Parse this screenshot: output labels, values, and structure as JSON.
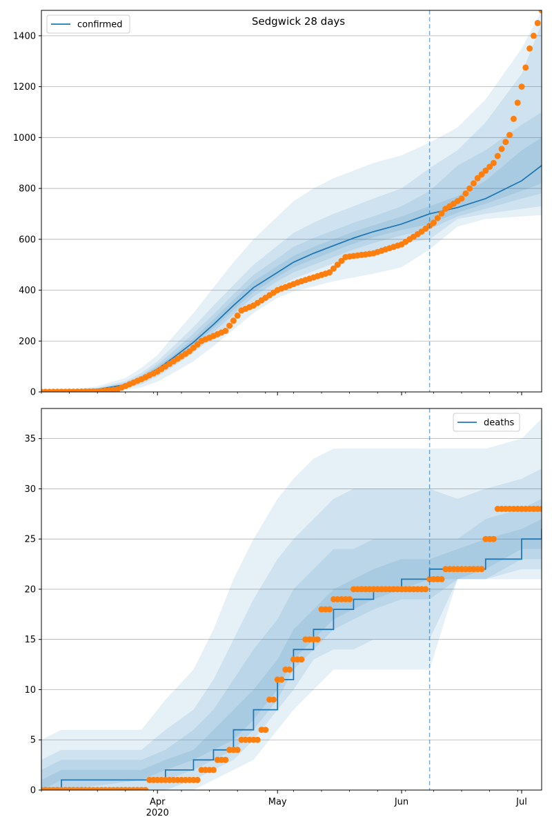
{
  "chart_data": [
    {
      "type": "line",
      "title": "Sedgwick 28 days",
      "legend": {
        "entries": [
          "confirmed"
        ],
        "placement": "top-left"
      },
      "xlim": [
        "2020-03-03",
        "2020-07-06"
      ],
      "ylim": [
        0,
        1500
      ],
      "yticks": [
        0,
        200,
        400,
        600,
        800,
        1000,
        1200,
        1400
      ],
      "grid": "horizontal",
      "forecast_start": "2020-06-08",
      "colors": {
        "line": "#1f77b4",
        "points": "#ff7f0e",
        "band": "#1f77b4",
        "divider": "#1f77b4"
      },
      "model": {
        "x": [
          "2020-03-03",
          "2020-03-10",
          "2020-03-17",
          "2020-03-24",
          "2020-03-28",
          "2020-04-01",
          "2020-04-05",
          "2020-04-10",
          "2020-04-15",
          "2020-04-20",
          "2020-04-25",
          "2020-05-01",
          "2020-05-05",
          "2020-05-10",
          "2020-05-15",
          "2020-05-20",
          "2020-05-25",
          "2020-06-01",
          "2020-06-08",
          "2020-06-15",
          "2020-06-22",
          "2020-07-01",
          "2020-07-06"
        ],
        "median": [
          2,
          5,
          10,
          28,
          55,
          90,
          135,
          195,
          265,
          340,
          410,
          470,
          510,
          545,
          575,
          605,
          630,
          660,
          700,
          725,
          760,
          830,
          890
        ],
        "bands": [
          {
            "lo": [
              0,
              0,
              2,
              8,
              18,
              40,
              75,
              120,
              180,
              245,
              310,
              370,
              395,
              415,
              435,
              450,
              465,
              490,
              560,
              650,
              680,
              690,
              695
            ],
            "hi": [
              6,
              10,
              22,
              55,
              95,
              145,
              220,
              310,
              410,
              510,
              600,
              690,
              750,
              800,
              840,
              870,
              900,
              930,
              980,
              1040,
              1150,
              1350,
              1500
            ]
          },
          {
            "lo": [
              1,
              2,
              4,
              14,
              30,
              60,
              100,
              155,
              215,
              285,
              355,
              410,
              445,
              475,
              505,
              530,
              555,
              585,
              600,
              680,
              700,
              720,
              730
            ],
            "hi": [
              4,
              8,
              16,
              42,
              75,
              120,
              180,
              255,
              340,
              420,
              500,
              575,
              625,
              665,
              700,
              730,
              760,
              800,
              880,
              950,
              1060,
              1250,
              1450
            ]
          },
          {
            "lo": [
              1,
              3,
              6,
              18,
              38,
              70,
              115,
              170,
              235,
              305,
              375,
              435,
              470,
              500,
              530,
              560,
              585,
              615,
              640,
              690,
              720,
              760,
              780
            ],
            "hi": [
              3,
              7,
              14,
              36,
              65,
              108,
              160,
              230,
              305,
              385,
              460,
              525,
              570,
              605,
              635,
              665,
              690,
              730,
              790,
              890,
              950,
              1050,
              1100
            ]
          },
          {
            "lo": [
              2,
              4,
              8,
              22,
              46,
              80,
              125,
              183,
              250,
              322,
              392,
              452,
              490,
              522,
              553,
              583,
              608,
              637,
              660,
              705,
              740,
              790,
              820
            ],
            "hi": [
              2,
              6,
              12,
              32,
              60,
              100,
              145,
              210,
              285,
              362,
              435,
              495,
              535,
              570,
              600,
              630,
              655,
              690,
              730,
              770,
              830,
              950,
              1000
            ]
          }
        ]
      },
      "observed": {
        "x": [
          "2020-03-03",
          "2020-03-17",
          "2020-03-22",
          "2020-03-25",
          "2020-03-28",
          "2020-04-01",
          "2020-04-05",
          "2020-04-09",
          "2020-04-12",
          "2020-04-18",
          "2020-04-22",
          "2020-04-25",
          "2020-05-01",
          "2020-05-06",
          "2020-05-10",
          "2020-05-14",
          "2020-05-18",
          "2020-05-25",
          "2020-06-01",
          "2020-06-06",
          "2020-06-09",
          "2020-06-12",
          "2020-06-16",
          "2020-06-20",
          "2020-06-24",
          "2020-06-28",
          "2020-07-01",
          "2020-07-03",
          "2020-07-06"
        ],
        "y": [
          0,
          2,
          10,
          30,
          50,
          80,
          120,
          160,
          200,
          240,
          320,
          340,
          400,
          430,
          450,
          470,
          530,
          545,
          580,
          630,
          665,
          720,
          760,
          840,
          900,
          1010,
          1200,
          1350,
          1500
        ]
      }
    },
    {
      "type": "line",
      "title": "",
      "legend": {
        "entries": [
          "deaths"
        ],
        "placement": "top-right"
      },
      "xlim": [
        "2020-03-03",
        "2020-07-06"
      ],
      "ylim": [
        0,
        38
      ],
      "yticks": [
        0,
        5,
        10,
        15,
        20,
        25,
        30,
        35
      ],
      "xticks": [
        "Apr",
        "May",
        "Jun",
        "Jul"
      ],
      "xticks_dates": [
        "2020-04-01",
        "2020-05-01",
        "2020-06-01",
        "2020-07-01"
      ],
      "xlabel_sub": "2020",
      "grid": "horizontal",
      "forecast_start": "2020-06-08",
      "colors": {
        "line": "#1f77b4",
        "points": "#ff7f0e",
        "band": "#1f77b4",
        "divider": "#1f77b4"
      },
      "model": {
        "x": [
          "2020-03-03",
          "2020-03-08",
          "2020-03-28",
          "2020-04-03",
          "2020-04-10",
          "2020-04-15",
          "2020-04-20",
          "2020-04-25",
          "2020-05-01",
          "2020-05-05",
          "2020-05-10",
          "2020-05-15",
          "2020-05-20",
          "2020-05-25",
          "2020-06-01",
          "2020-06-08",
          "2020-06-15",
          "2020-06-22",
          "2020-07-01",
          "2020-07-06"
        ],
        "median": [
          0,
          1,
          1,
          2,
          3,
          4,
          6,
          8,
          11,
          14,
          16,
          18,
          19,
          20,
          21,
          22,
          22,
          23,
          25,
          26
        ],
        "bands": [
          {
            "lo": [
              0,
              0,
              0,
              0,
              0,
              1,
              2,
              3,
              6,
              8,
              10,
              12,
              12,
              12,
              12,
              12,
              21,
              21,
              21,
              21
            ],
            "hi": [
              5,
              6,
              6,
              9,
              12,
              16,
              21,
              25,
              29,
              31,
              33,
              34,
              34,
              34,
              34,
              34,
              34,
              34,
              35,
              37
            ]
          },
          {
            "lo": [
              0,
              0,
              0,
              0,
              1,
              2,
              3,
              5,
              8,
              10,
              13,
              14,
              14,
              15,
              15,
              15,
              21,
              21,
              22,
              22
            ],
            "hi": [
              3,
              4,
              4,
              6,
              8,
              11,
              15,
              19,
              23,
              25,
              27,
              29,
              30,
              30,
              30,
              30,
              29,
              30,
              31,
              32
            ]
          },
          {
            "lo": [
              0,
              0,
              1,
              1,
              2,
              3,
              4,
              6,
              9,
              12,
              14,
              16,
              17,
              18,
              19,
              19,
              21,
              21,
              23,
              23
            ],
            "hi": [
              2,
              3,
              3,
              4,
              6,
              8,
              11,
              14,
              17,
              20,
              22,
              24,
              24,
              25,
              25,
              25,
              25,
              27,
              28,
              29
            ]
          },
          {
            "lo": [
              0,
              1,
              1,
              2,
              3,
              4,
              5,
              7,
              10,
              13,
              15,
              17,
              18,
              19,
              20,
              21,
              21,
              22,
              24,
              24
            ],
            "hi": [
              1,
              2,
              2,
              3,
              4,
              6,
              8,
              10,
              13,
              16,
              18,
              20,
              21,
              22,
              23,
              23,
              24,
              25,
              26,
              27
            ]
          }
        ]
      },
      "observed": {
        "x": [
          "2020-03-03",
          "2020-03-30",
          "2020-04-07",
          "2020-04-12",
          "2020-04-16",
          "2020-04-19",
          "2020-04-22",
          "2020-04-27",
          "2020-04-29",
          "2020-05-01",
          "2020-05-03",
          "2020-05-05",
          "2020-05-08",
          "2020-05-12",
          "2020-05-15",
          "2020-05-20",
          "2020-06-08",
          "2020-06-12",
          "2020-06-22",
          "2020-06-25",
          "2020-07-06"
        ],
        "y": [
          0,
          1,
          1,
          2,
          3,
          4,
          5,
          6,
          9,
          11,
          12,
          13,
          15,
          18,
          19,
          20,
          21,
          22,
          25,
          28,
          28
        ]
      }
    }
  ]
}
